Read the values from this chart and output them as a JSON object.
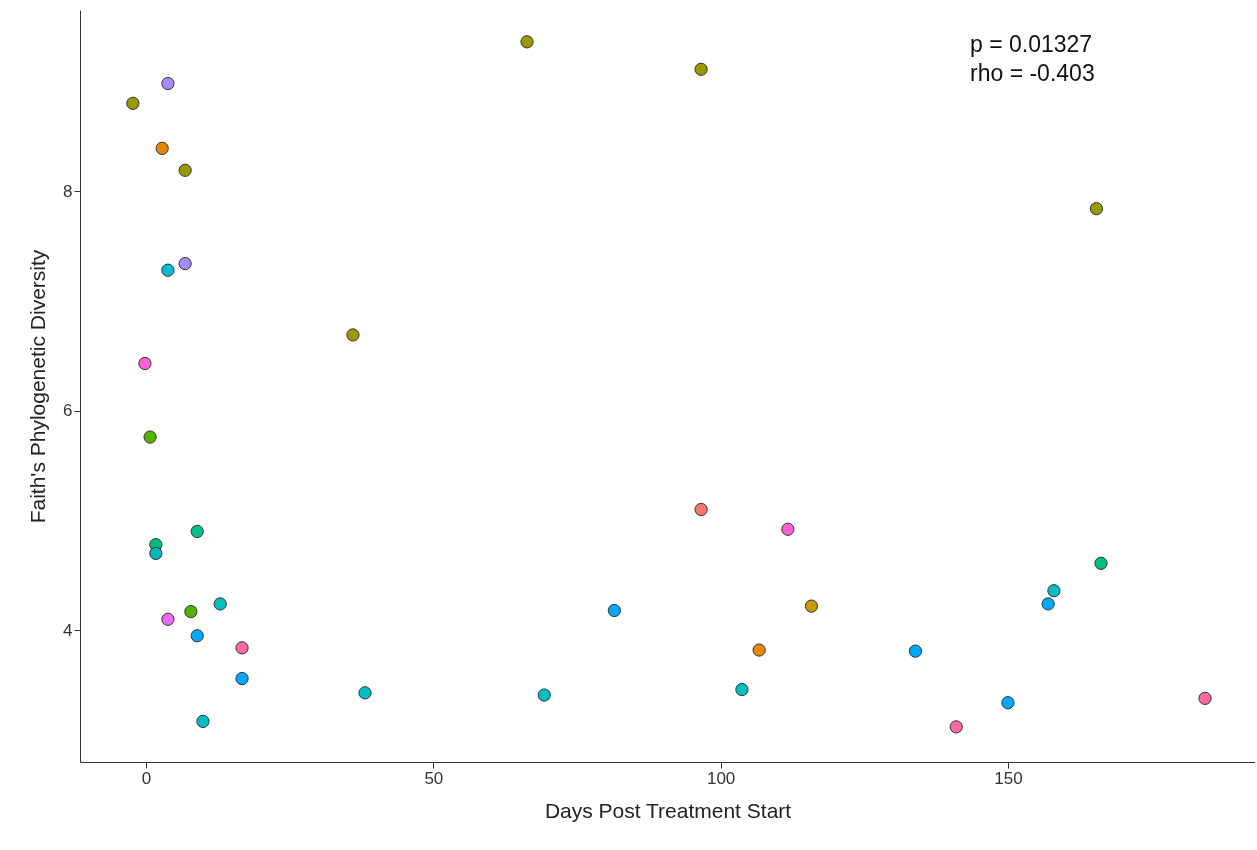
{
  "chart_data": {
    "type": "scatter",
    "xlabel": "Days Post Treatment Start",
    "ylabel": "Faith's Phylogenetic Diversity",
    "annotations": [
      "p = 0.01327",
      "rho = -0.403"
    ],
    "x": [
      -2.3,
      3.8,
      2.8,
      6.8,
      3.8,
      6.8,
      36.0,
      -0.2,
      0.7,
      8.9,
      1.7,
      1.7,
      12.9,
      7.8,
      3.8,
      8.9,
      16.7,
      16.7,
      9.9,
      38.1,
      66.3,
      96.6,
      165.4,
      96.6,
      111.7,
      81.5,
      115.8,
      106.7,
      69.3,
      103.7,
      133.9,
      166.2,
      158.0,
      157.0,
      150.0,
      141.0,
      184.3
    ],
    "values": [
      8.8,
      8.98,
      8.39,
      8.19,
      7.28,
      7.34,
      6.69,
      6.43,
      5.76,
      4.9,
      4.78,
      4.7,
      4.24,
      4.17,
      4.1,
      3.95,
      3.84,
      3.56,
      3.17,
      3.43,
      9.36,
      9.11,
      7.84,
      5.1,
      4.92,
      4.18,
      4.22,
      3.82,
      3.41,
      3.46,
      3.81,
      4.61,
      4.36,
      4.24,
      3.34,
      3.12,
      3.38
    ],
    "colors": [
      "#999900",
      "#a58aff",
      "#e58700",
      "#999900",
      "#00bcd8",
      "#a58aff",
      "#999900",
      "#fb61d7",
      "#53b400",
      "#00c08b",
      "#00bf7d",
      "#00b6c0",
      "#00c0b8",
      "#53b400",
      "#e76bf3",
      "#00a9ff",
      "#ff67a4",
      "#00a9ff",
      "#00bfc4",
      "#00bfc4",
      "#999900",
      "#999900",
      "#999900",
      "#f8766d",
      "#fb61d7",
      "#00a9ff",
      "#c49a00",
      "#e58700",
      "#00bfc4",
      "#00bfc4",
      "#00a9ff",
      "#00bf7d",
      "#00bfc4",
      "#00a9ff",
      "#00a9ff",
      "#ff67a4",
      "#ff67a4"
    ],
    "marker": "circle",
    "xlim": [
      -11.5,
      193
    ],
    "xticks": [
      0,
      50,
      100,
      150
    ],
    "ylim": [
      2.8,
      9.65
    ],
    "yticks": [
      4,
      6,
      8
    ],
    "grid": false
  }
}
